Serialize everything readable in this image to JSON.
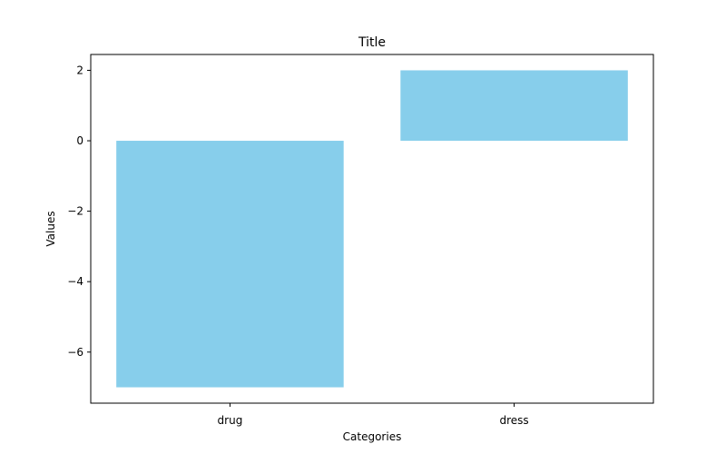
{
  "chart_data": {
    "type": "bar",
    "title": "Title",
    "xlabel": "Categories",
    "ylabel": "Values",
    "categories": [
      "drug",
      "dress"
    ],
    "values": [
      -7,
      2
    ],
    "ylim": [
      -7.45,
      2.45
    ],
    "yticks": [
      -6,
      -4,
      -2,
      0,
      2
    ],
    "ytick_labels": [
      "−6",
      "−4",
      "−2",
      "0",
      "2"
    ],
    "grid": false,
    "bar_color": "#87CEEB"
  }
}
